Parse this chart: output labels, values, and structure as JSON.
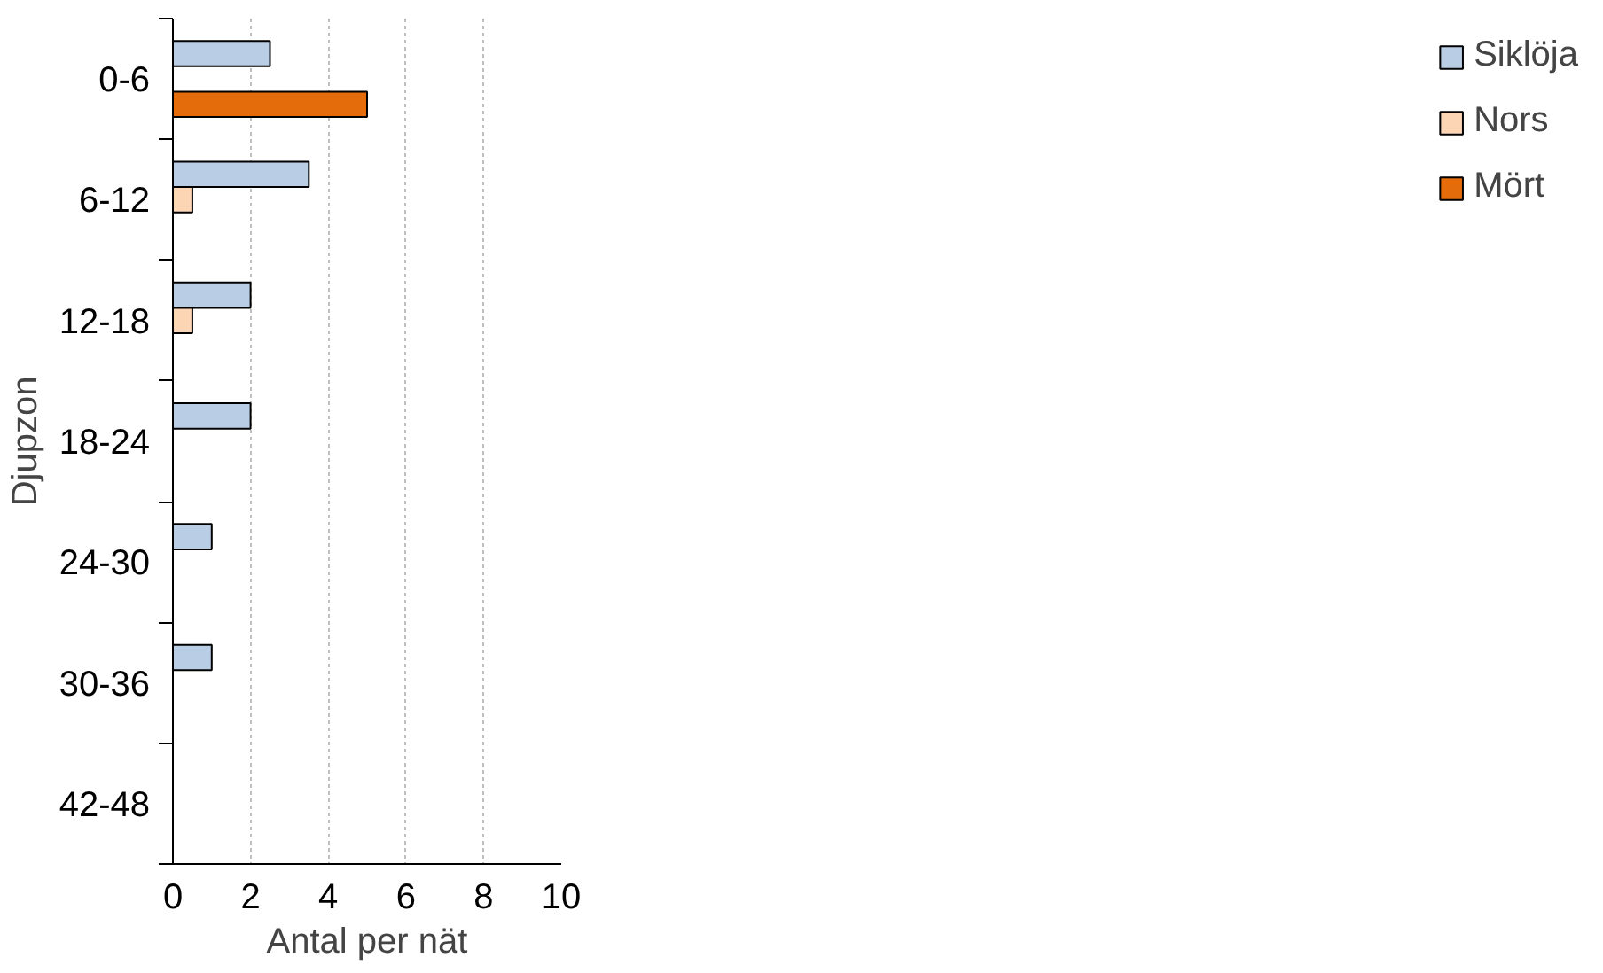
{
  "chart_data": {
    "type": "bar",
    "orientation": "horizontal",
    "xlabel": "Antal per nät",
    "ylabel": "Djupzon",
    "categories": [
      "0-6",
      "6-12",
      "12-18",
      "18-24",
      "24-30",
      "30-36",
      "42-48"
    ],
    "series": [
      {
        "name": "Siklöja",
        "color": "#b9cde5",
        "values": [
          2.5,
          3.5,
          2,
          2,
          1,
          1,
          null
        ]
      },
      {
        "name": "Nors",
        "color": "#fcd5b5",
        "values": [
          null,
          0.5,
          0.5,
          null,
          null,
          null,
          null
        ]
      },
      {
        "name": "Mört",
        "color": "#e46c0a",
        "values": [
          5,
          null,
          null,
          null,
          null,
          null,
          null
        ]
      }
    ],
    "xlim": [
      0,
      10
    ],
    "xticks": [
      0,
      2,
      4,
      6,
      8,
      10
    ],
    "grid": "x",
    "legend": "right"
  }
}
